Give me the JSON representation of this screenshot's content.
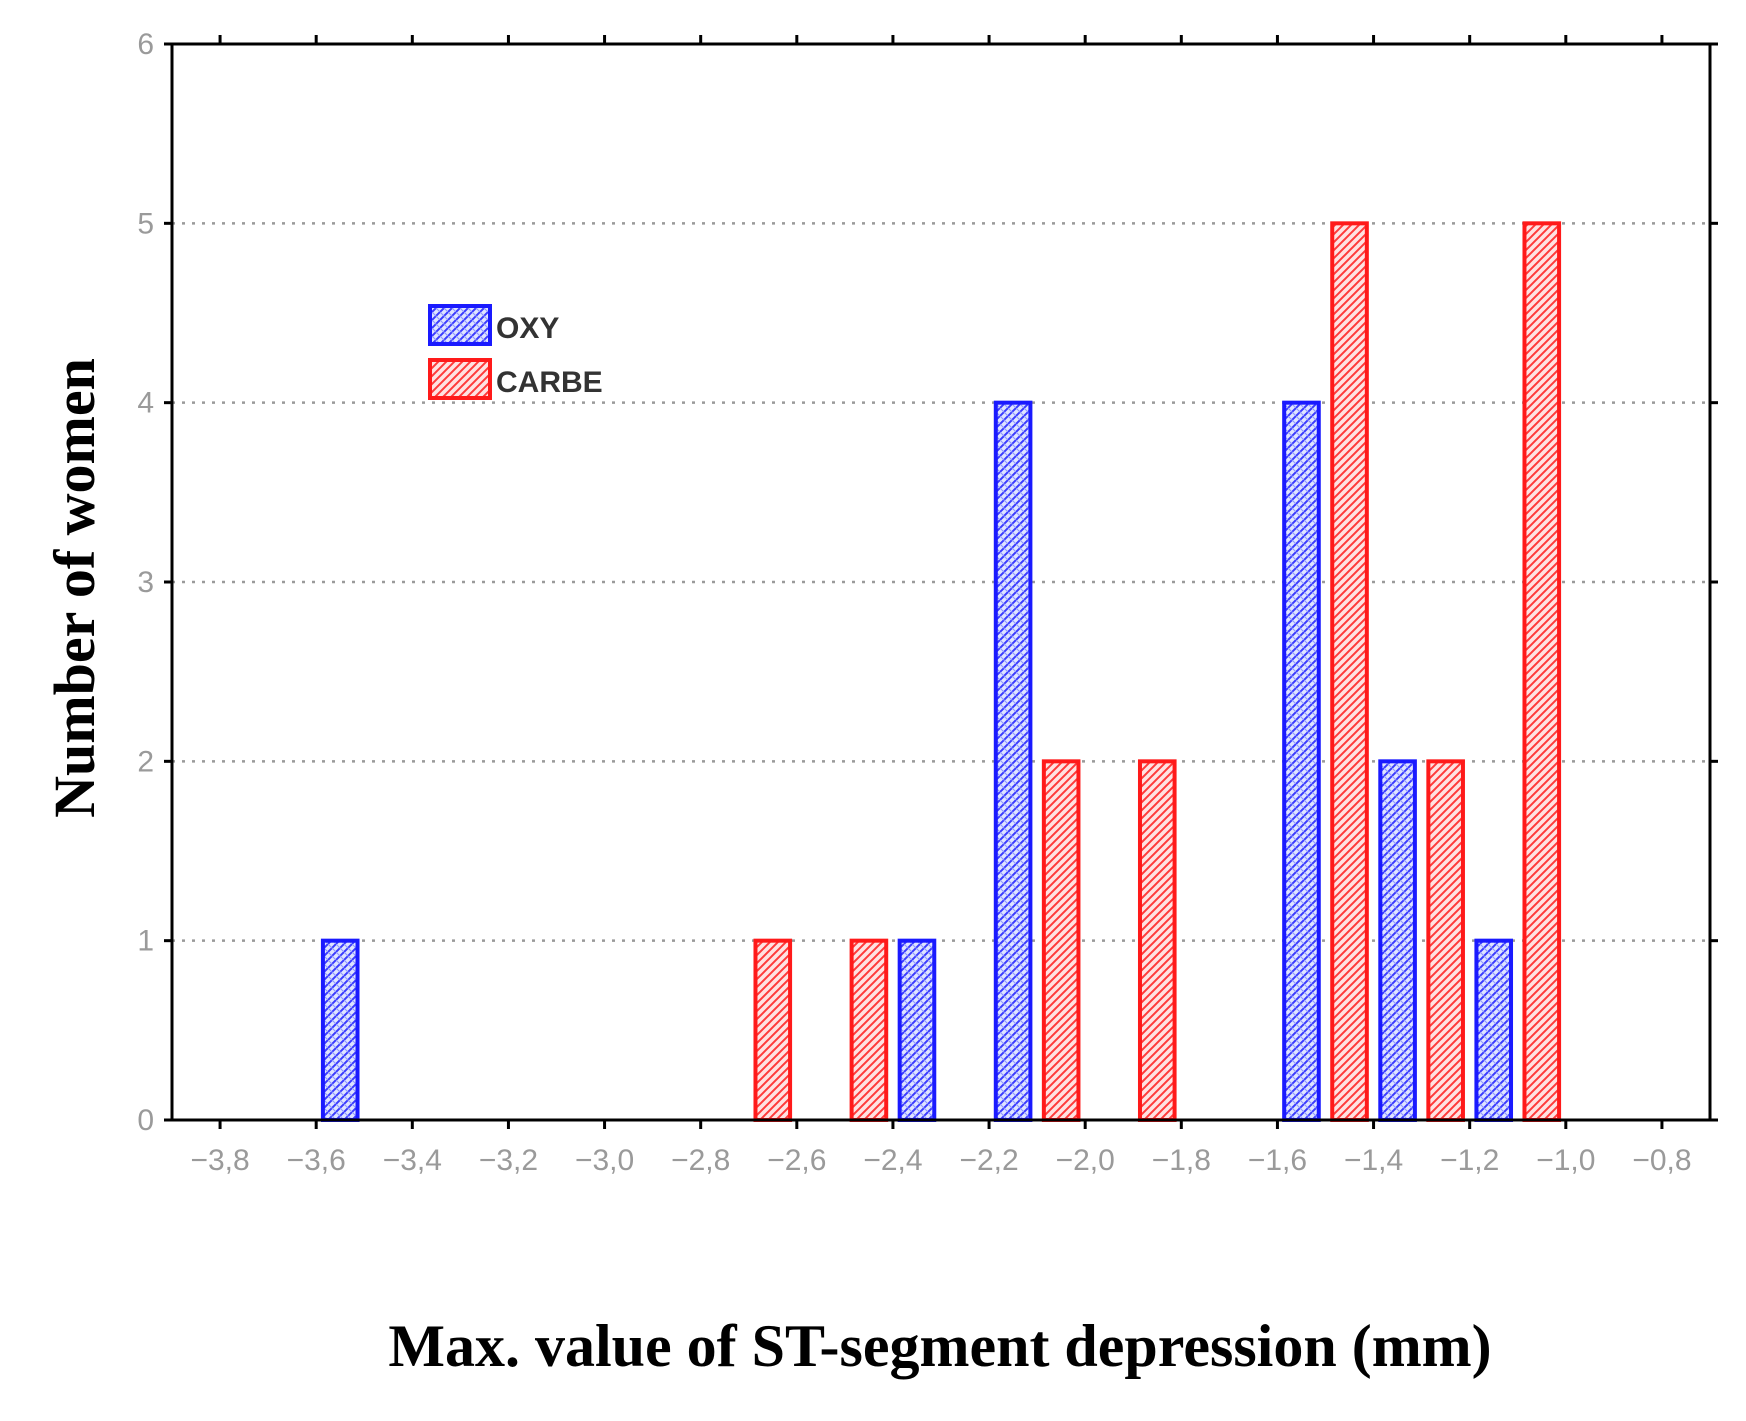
{
  "chart_data": {
    "type": "bar",
    "title": "",
    "xlabel": "Max. value of ST-segment depression (mm)",
    "ylabel": "Number of women",
    "xlim": [
      -3.9,
      -0.7
    ],
    "ylim": [
      0,
      6
    ],
    "xticks": [
      "-3,8",
      "-3,6",
      "-3,4",
      "-3,2",
      "-3,0",
      "-2,8",
      "-2,6",
      "-2,4",
      "-2,2",
      "-2,0",
      "-1,8",
      "-1,6",
      "-1,4",
      "-1,2",
      "-1,0",
      "-0,8"
    ],
    "xtick_values": [
      -3.8,
      -3.6,
      -3.4,
      -3.2,
      -3.0,
      -2.8,
      -2.6,
      -2.4,
      -2.2,
      -2.0,
      -1.8,
      -1.6,
      -1.4,
      -1.2,
      -1.0,
      -0.8
    ],
    "yticks": [
      "0",
      "1",
      "2",
      "3",
      "4",
      "5",
      "6"
    ],
    "ytick_values": [
      0,
      1,
      2,
      3,
      4,
      5,
      6
    ],
    "grid": "horizontal dotted",
    "legend_position": "upper-left",
    "series": [
      {
        "name": "OXY",
        "color": "#1a1aff",
        "fill": "#b8c4ff",
        "points": [
          {
            "x": -3.55,
            "y": 1
          },
          {
            "x": -2.35,
            "y": 1
          },
          {
            "x": -2.15,
            "y": 4
          },
          {
            "x": -1.55,
            "y": 4
          },
          {
            "x": -1.35,
            "y": 2
          },
          {
            "x": -1.15,
            "y": 1
          }
        ]
      },
      {
        "name": "CARBE",
        "color": "#ff1a1a",
        "fill": "#ffb0b0",
        "points": [
          {
            "x": -2.65,
            "y": 1
          },
          {
            "x": -2.45,
            "y": 1
          },
          {
            "x": -2.05,
            "y": 2
          },
          {
            "x": -1.85,
            "y": 2
          },
          {
            "x": -1.45,
            "y": 5
          },
          {
            "x": -1.25,
            "y": 2
          },
          {
            "x": -1.05,
            "y": 5
          }
        ]
      }
    ]
  }
}
